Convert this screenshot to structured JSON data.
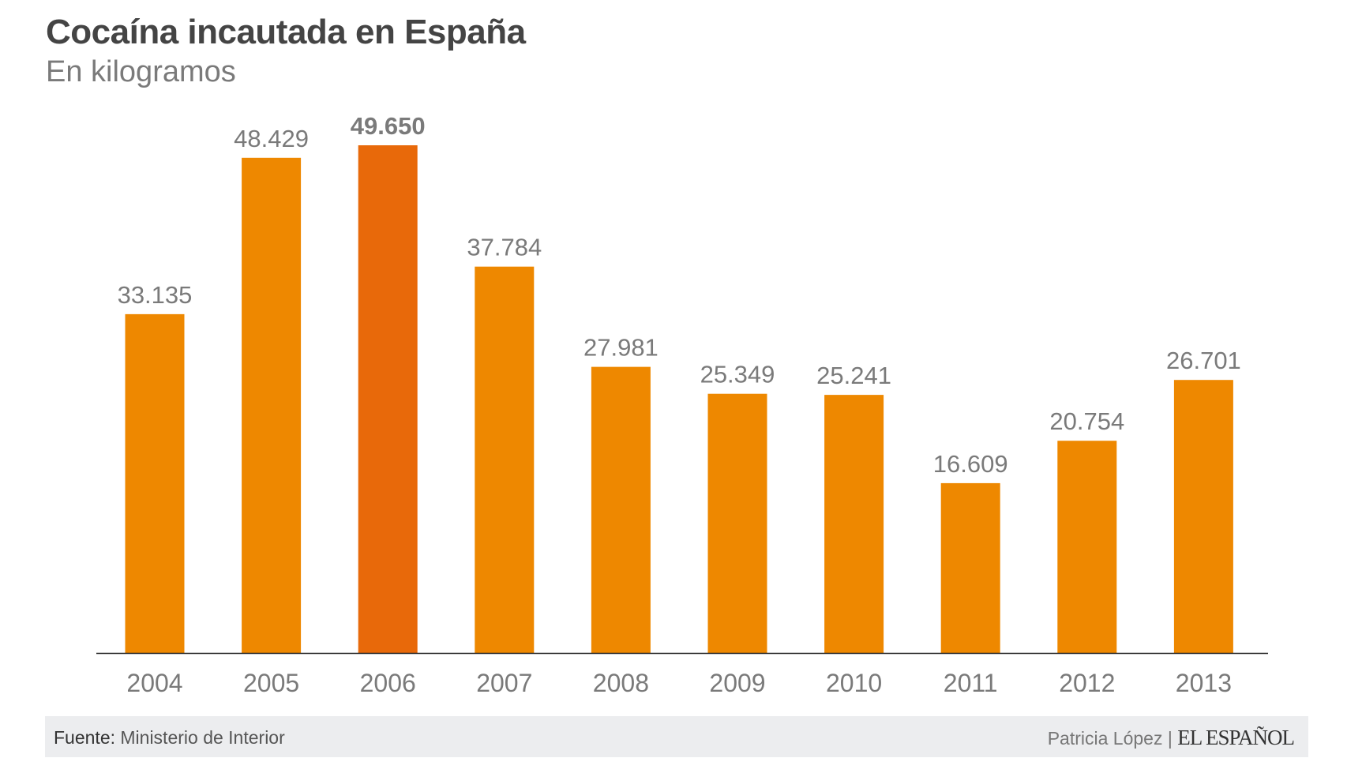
{
  "chart_data": {
    "type": "bar",
    "title": "Cocaína incautada en España",
    "subtitle": "En kilogramos",
    "categories": [
      "2004",
      "2005",
      "2006",
      "2007",
      "2008",
      "2009",
      "2010",
      "2011",
      "2012",
      "2013"
    ],
    "values": [
      33135,
      48429,
      49650,
      37784,
      27981,
      25349,
      25241,
      16609,
      20754,
      26701
    ],
    "data_labels": [
      "33.135",
      "48.429",
      "49.650",
      "37.784",
      "27.981",
      "25.349",
      "25.241",
      "16.609",
      "20.754",
      "26.701"
    ],
    "highlight_index": 2,
    "ylim": [
      0,
      49650
    ],
    "grid": false,
    "colors": {
      "bar": "#EE8800",
      "highlight": "#E8690A",
      "label": "#7a7a7a"
    }
  },
  "footer": {
    "source_label": "Fuente:",
    "source": "Ministerio de Interior",
    "author": "Patricia López",
    "separator": "|",
    "logo": "EL ESPAÑOL"
  }
}
